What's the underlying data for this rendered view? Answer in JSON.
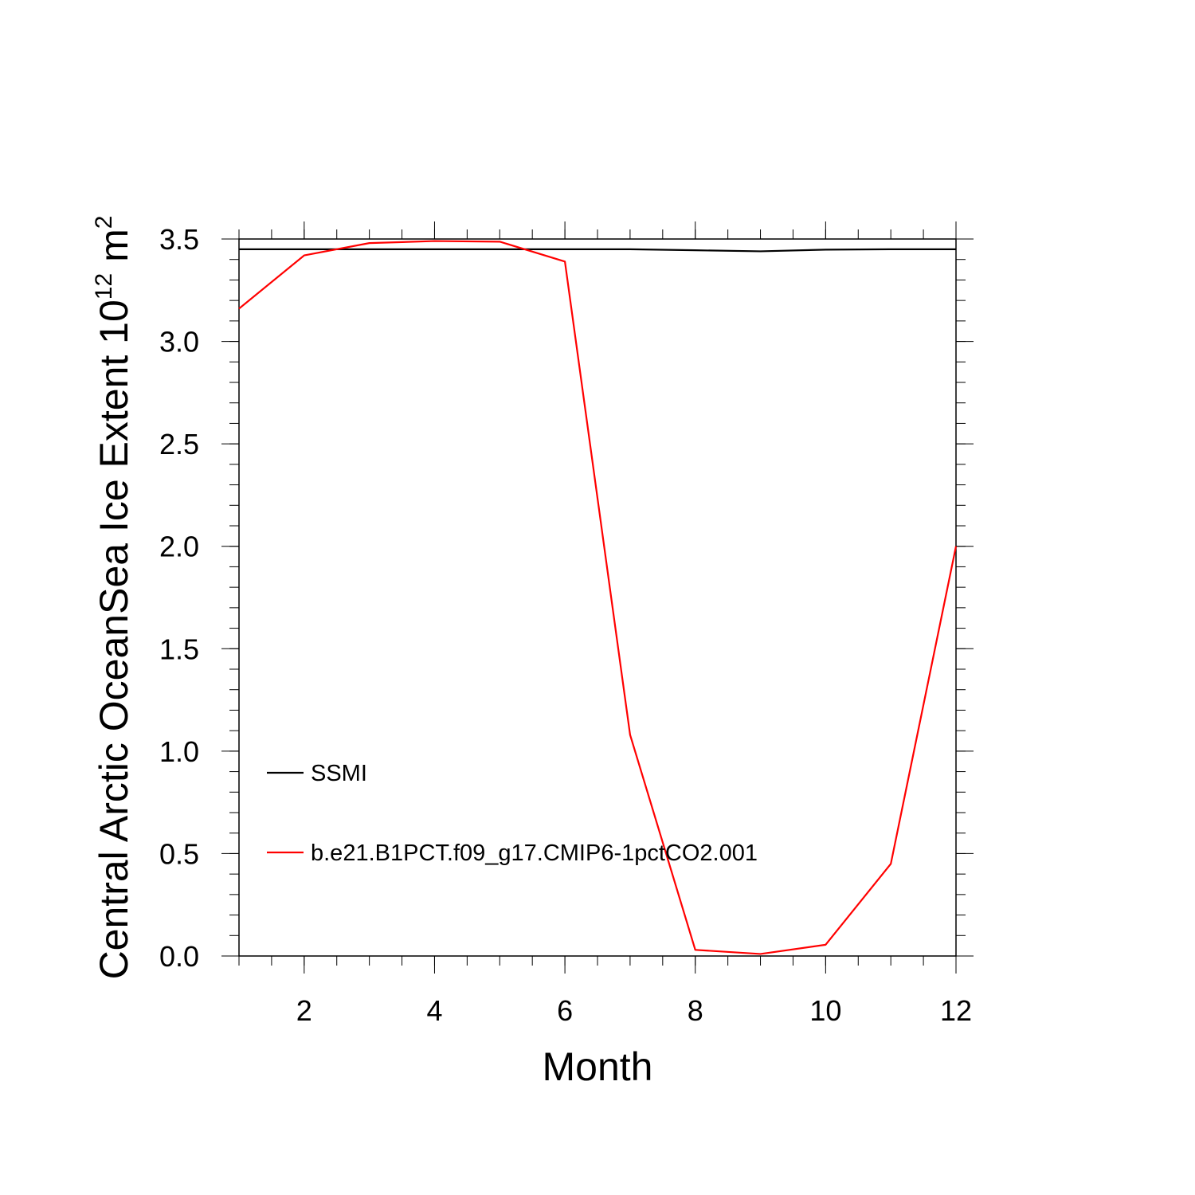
{
  "chart_data": {
    "type": "line",
    "title": "",
    "xlabel": "Month",
    "ylabel": {
      "text": "Central Arctic OceanSea Ice Extent 10",
      "exponent": "12",
      "unit": " m",
      "unit_exponent": "2"
    },
    "xlim": [
      1,
      12
    ],
    "ylim": [
      0,
      3.5
    ],
    "x": [
      1,
      2,
      3,
      4,
      5,
      6,
      7,
      8,
      9,
      10,
      11,
      12
    ],
    "x_ticks": [
      "2",
      "4",
      "6",
      "8",
      "10",
      "12"
    ],
    "y_ticks": [
      "0.0",
      "0.5",
      "1.0",
      "1.5",
      "2.0",
      "2.5",
      "3.0",
      "3.5"
    ],
    "grid": false,
    "legend_position": "lower-left",
    "series": [
      {
        "name": "SSMI",
        "color": "#000000",
        "values": [
          3.45,
          3.45,
          3.45,
          3.45,
          3.45,
          3.45,
          3.45,
          3.445,
          3.44,
          3.448,
          3.45,
          3.45
        ]
      },
      {
        "name": "b.e21.B1PCT.f09_g17.CMIP6-1pctCO2.001",
        "color": "#ff0000",
        "values": [
          3.16,
          3.42,
          3.48,
          3.49,
          3.487,
          3.39,
          1.08,
          0.03,
          0.01,
          0.055,
          0.45,
          2.0
        ]
      }
    ]
  }
}
